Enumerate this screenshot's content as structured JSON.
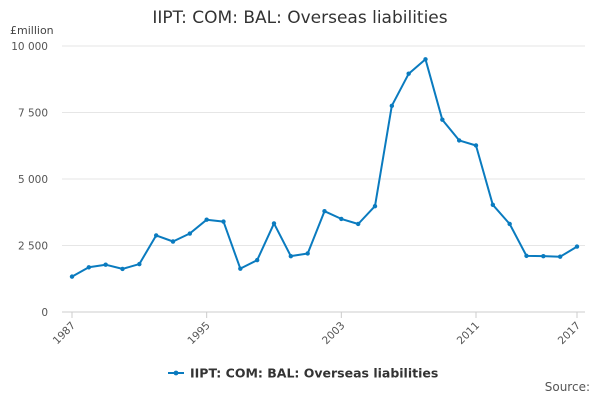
{
  "chart_data": {
    "type": "line",
    "title": "IIPT: COM: BAL: Overseas liabilities",
    "y_unit": "£million",
    "source": "Source:",
    "x": [
      1987,
      1988,
      1989,
      1990,
      1991,
      1992,
      1993,
      1994,
      1995,
      1996,
      1997,
      1998,
      1999,
      2000,
      2001,
      2002,
      2003,
      2004,
      2005,
      2006,
      2007,
      2008,
      2009,
      2010,
      2011,
      2012,
      2013,
      2014,
      2015,
      2016,
      2017
    ],
    "series": [
      {
        "name": "IIPT: COM: BAL: Overseas liabilities",
        "color": "#0a7bbf",
        "values": [
          1330,
          1680,
          1780,
          1620,
          1800,
          2880,
          2650,
          2950,
          3470,
          3400,
          1630,
          1950,
          3330,
          2100,
          2200,
          3790,
          3500,
          3310,
          3980,
          7750,
          8960,
          9500,
          7230,
          6450,
          6260,
          4030,
          3310,
          2110,
          2100,
          2080,
          2460
        ]
      }
    ],
    "ylim": [
      0,
      10000
    ],
    "yticks": [
      0,
      2500,
      5000,
      7500,
      10000
    ],
    "ytick_labels": [
      "0",
      "2 500",
      "5 000",
      "7 500",
      "10 000"
    ],
    "xticks": [
      1987,
      1995,
      2003,
      2011,
      2017
    ],
    "xtick_labels": [
      "1987",
      "1995",
      "2003",
      "2011",
      "2017"
    ],
    "grid": true,
    "legend": "bottom"
  }
}
